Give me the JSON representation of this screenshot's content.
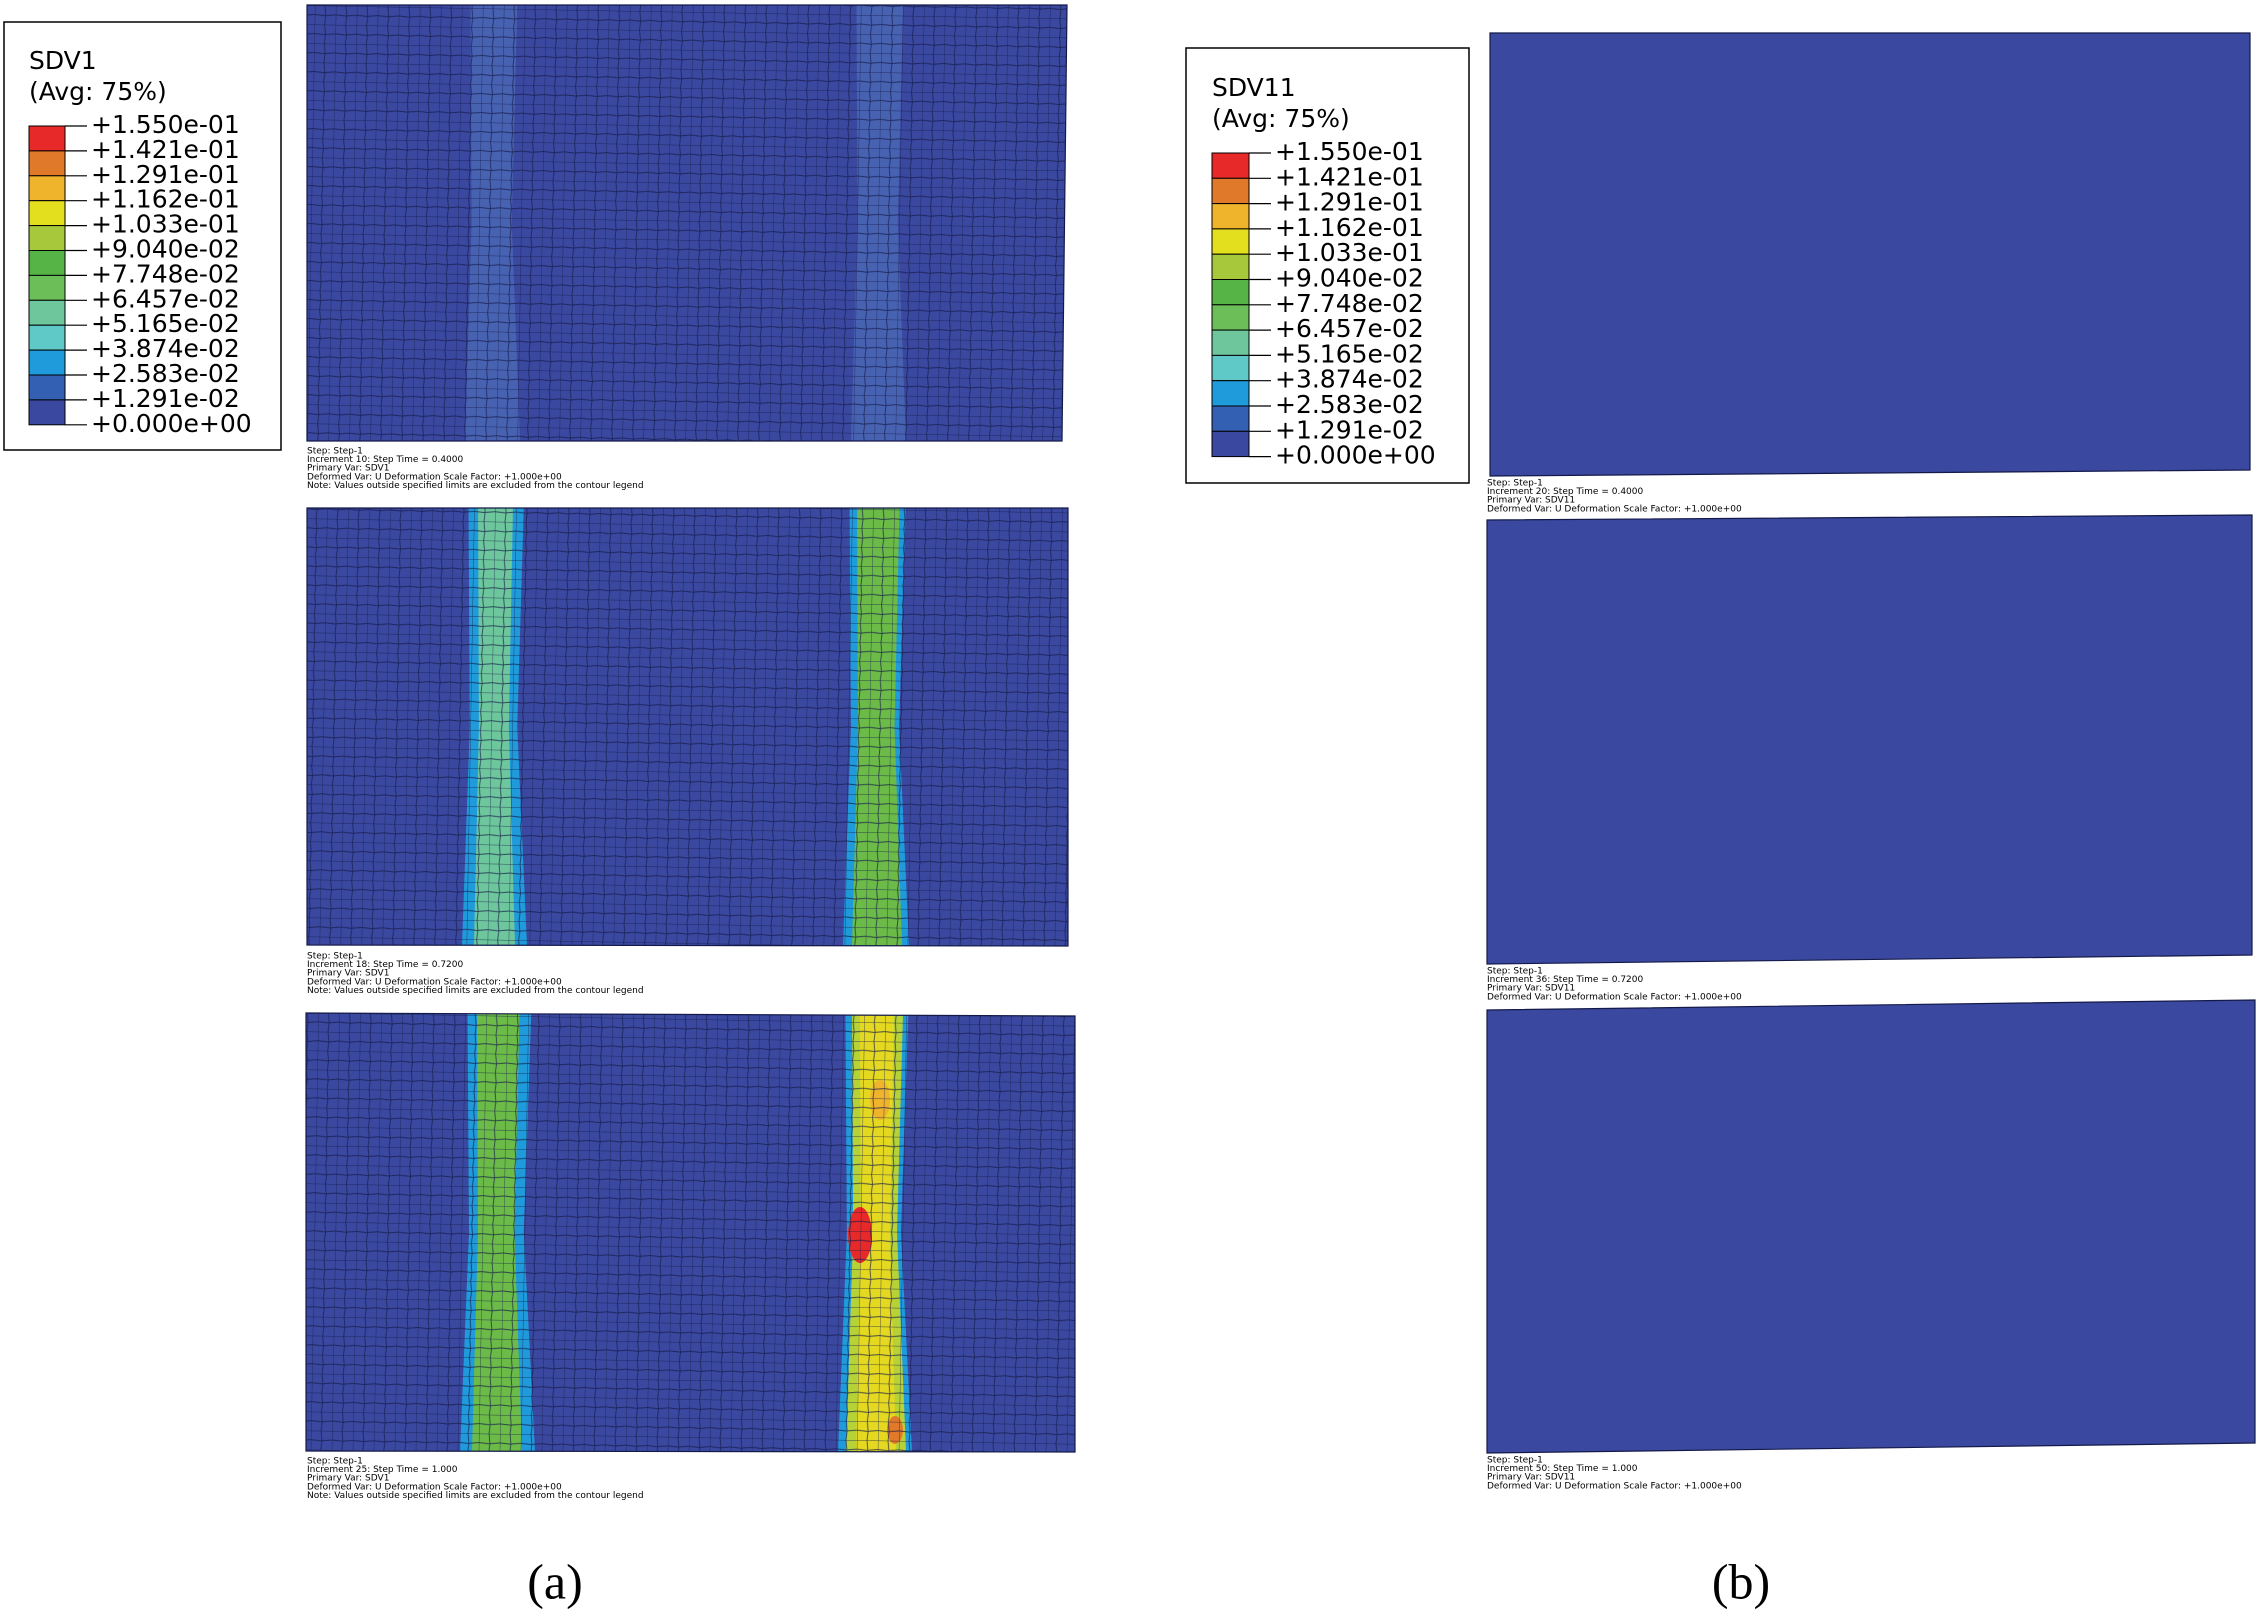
{
  "panels": [
    {
      "label": "(a)",
      "legend": {
        "title": "SDV1",
        "subtitle": "(Avg: 75%)",
        "values": [
          "+1.550e-01",
          "+1.421e-01",
          "+1.291e-01",
          "+1.162e-01",
          "+1.033e-01",
          "+9.040e-02",
          "+7.748e-02",
          "+6.457e-02",
          "+5.165e-02",
          "+3.874e-02",
          "+2.583e-02",
          "+1.291e-02",
          "+0.000e+00"
        ]
      },
      "frames": [
        {
          "info": [
            "Step: Step-1",
            "Increment     10: Step Time =    0.4000",
            "Primary Var: SDV1",
            "Deformed Var: U   Deformation Scale Factor: +1.000e+00",
            "Note:  Values outside specified limits are excluded from the contour legend"
          ]
        },
        {
          "info": [
            "Step: Step-1",
            "Increment     18: Step Time =    0.7200",
            "Primary Var: SDV1",
            "Deformed Var: U   Deformation Scale Factor: +1.000e+00",
            "Note:  Values outside specified limits are excluded from the contour legend"
          ]
        },
        {
          "info": [
            "Step: Step-1",
            "Increment     25: Step Time =    1.000",
            "Primary Var: SDV1",
            "Deformed Var: U   Deformation Scale Factor: +1.000e+00",
            "Note:  Values outside specified limits are excluded from the contour legend"
          ]
        }
      ]
    },
    {
      "label": "(b)",
      "legend": {
        "title": "SDV11",
        "subtitle": "(Avg: 75%)",
        "values": [
          "+1.550e-01",
          "+1.421e-01",
          "+1.291e-01",
          "+1.162e-01",
          "+1.033e-01",
          "+9.040e-02",
          "+7.748e-02",
          "+6.457e-02",
          "+5.165e-02",
          "+3.874e-02",
          "+2.583e-02",
          "+1.291e-02",
          "+0.000e+00"
        ]
      },
      "frames": [
        {
          "info": [
            "Step: Step-1",
            "Increment     20: Step Time =    0.4000",
            "Primary Var: SDV11",
            "Deformed Var: U   Deformation Scale Factor: +1.000e+00"
          ]
        },
        {
          "info": [
            "Step: Step-1",
            "Increment     36: Step Time =    0.7200",
            "Primary Var: SDV11",
            "Deformed Var: U   Deformation Scale Factor: +1.000e+00"
          ]
        },
        {
          "info": [
            "Step: Step-1",
            "Increment     50: Step Time =    1.000",
            "Primary Var: SDV11",
            "Deformed Var: U   Deformation Scale Factor: +1.000e+00"
          ]
        }
      ]
    }
  ]
}
